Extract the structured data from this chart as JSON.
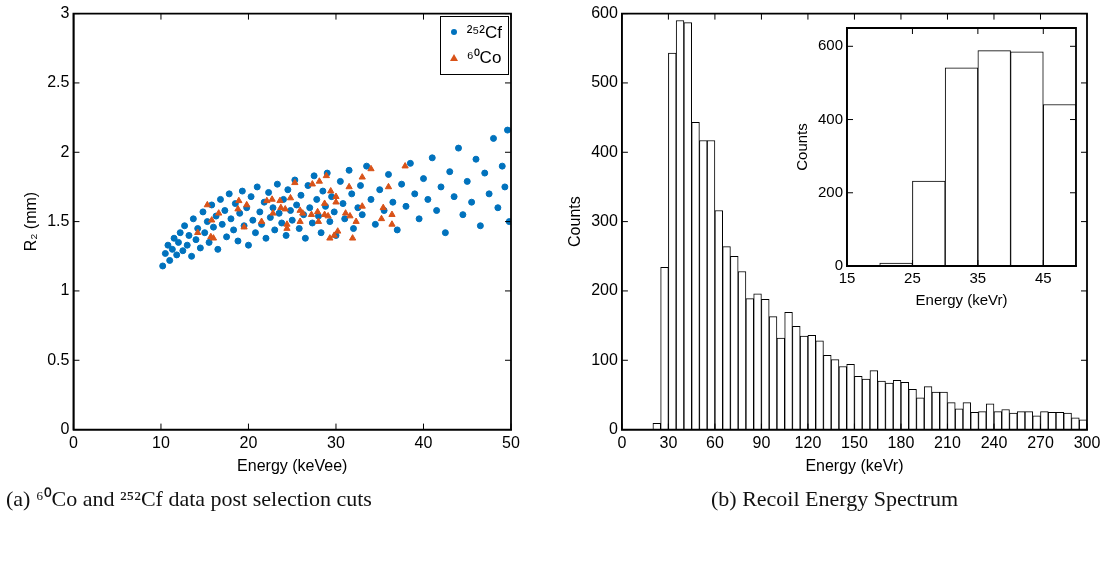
{
  "chart_data": [
    {
      "type": "scatter",
      "xlabel": "Energy (keVee)",
      "ylabel": "R₂ (mm)",
      "xlim": [
        0,
        50
      ],
      "ylim": [
        0,
        3
      ],
      "xticks": [
        0,
        10,
        20,
        30,
        40,
        50
      ],
      "yticks": [
        0,
        0.5,
        1,
        1.5,
        2,
        2.5,
        3
      ],
      "legend": "top right",
      "series": [
        {
          "name": "²⁵²Cf",
          "color": "#0072bd",
          "marker": "circle",
          "x": [
            10.2,
            10.5,
            10.8,
            11.0,
            11.3,
            11.5,
            11.8,
            12.0,
            12.2,
            12.5,
            12.7,
            13.0,
            13.2,
            13.5,
            13.7,
            14.0,
            14.2,
            14.5,
            14.8,
            15.0,
            15.3,
            15.5,
            15.8,
            16.0,
            16.3,
            16.5,
            16.8,
            17.0,
            17.3,
            17.5,
            17.8,
            18.0,
            18.3,
            18.5,
            18.8,
            19.0,
            19.3,
            19.5,
            19.8,
            20.0,
            20.3,
            20.5,
            20.8,
            21.0,
            21.3,
            21.5,
            21.8,
            22.0,
            22.3,
            22.5,
            22.8,
            23.0,
            23.3,
            23.5,
            23.8,
            24.0,
            24.3,
            24.5,
            24.8,
            25.0,
            25.3,
            25.5,
            25.8,
            26.0,
            26.3,
            26.5,
            26.8,
            27.0,
            27.3,
            27.5,
            27.8,
            28.0,
            28.3,
            28.5,
            28.8,
            29.0,
            29.3,
            29.5,
            29.8,
            30.0,
            30.5,
            30.8,
            31.0,
            31.5,
            31.8,
            32.0,
            32.5,
            32.8,
            33.0,
            33.5,
            34.0,
            34.5,
            35.0,
            35.5,
            36.0,
            36.5,
            37.0,
            37.5,
            38.0,
            38.5,
            39.0,
            39.5,
            40.0,
            40.5,
            41.0,
            41.5,
            42.0,
            42.5,
            43.0,
            43.5,
            44.0,
            44.5,
            45.0,
            45.5,
            46.0,
            46.5,
            47.0,
            47.5,
            48.0,
            48.5,
            49.0,
            49.3,
            49.6,
            49.8
          ],
          "values": [
            1.18,
            1.27,
            1.33,
            1.22,
            1.3,
            1.38,
            1.26,
            1.35,
            1.42,
            1.29,
            1.47,
            1.33,
            1.4,
            1.25,
            1.52,
            1.37,
            1.45,
            1.31,
            1.57,
            1.42,
            1.5,
            1.35,
            1.62,
            1.46,
            1.54,
            1.3,
            1.66,
            1.48,
            1.58,
            1.39,
            1.7,
            1.52,
            1.44,
            1.63,
            1.36,
            1.56,
            1.72,
            1.47,
            1.6,
            1.33,
            1.68,
            1.51,
            1.42,
            1.75,
            1.57,
            1.48,
            1.64,
            1.38,
            1.71,
            1.53,
            1.6,
            1.44,
            1.77,
            1.56,
            1.49,
            1.66,
            1.4,
            1.73,
            1.58,
            1.51,
            1.8,
            1.62,
            1.45,
            1.69,
            1.55,
            1.38,
            1.76,
            1.6,
            1.49,
            1.83,
            1.66,
            1.54,
            1.42,
            1.72,
            1.61,
            1.85,
            1.5,
            1.68,
            1.57,
            1.4,
            1.79,
            1.63,
            1.52,
            1.87,
            1.7,
            1.45,
            1.6,
            1.76,
            1.55,
            1.9,
            1.66,
            1.48,
            1.73,
            1.58,
            1.84,
            1.64,
            1.44,
            1.77,
            1.61,
            1.92,
            1.7,
            1.52,
            1.81,
            1.66,
            1.96,
            1.58,
            1.75,
            1.42,
            1.86,
            1.68,
            2.03,
            1.55,
            1.79,
            1.64,
            1.95,
            1.47,
            1.85,
            1.7,
            2.1,
            1.6,
            1.9,
            1.75,
            2.16,
            1.5
          ]
        },
        {
          "name": "⁶⁰Co",
          "color": "#d95319",
          "marker": "triangle",
          "x": [
            15.3,
            14.2,
            15.8,
            15.7,
            16.0,
            16.6,
            18.9,
            18.8,
            19.8,
            19.5,
            21.5,
            22.1,
            22.7,
            22.8,
            23.6,
            23.7,
            24.2,
            24.4,
            24.4,
            24.8,
            25.3,
            25.9,
            25.9,
            26.2,
            27.2,
            27.3,
            27.9,
            28.0,
            28.1,
            28.7,
            28.7,
            28.9,
            29.1,
            29.3,
            29.4,
            29.8,
            30.0,
            30.0,
            30.2,
            31.1,
            31.5,
            31.6,
            31.9,
            32.3,
            33.0,
            33.0,
            34.0,
            35.2,
            35.4,
            36.0,
            36.4,
            36.4,
            37.9
          ],
          "values": [
            1.62,
            1.42,
            1.51,
            1.39,
            1.38,
            1.56,
            1.65,
            1.59,
            1.62,
            1.46,
            1.5,
            1.65,
            1.66,
            1.56,
            1.65,
            1.6,
            1.59,
            1.48,
            1.45,
            1.67,
            1.78,
            1.58,
            1.5,
            1.56,
            1.55,
            1.77,
            1.57,
            1.5,
            1.79,
            1.55,
            1.63,
            1.83,
            1.54,
            1.38,
            1.72,
            1.4,
            1.68,
            1.64,
            1.43,
            1.56,
            1.75,
            1.54,
            1.38,
            1.5,
            1.82,
            1.61,
            1.88,
            1.52,
            1.6,
            1.75,
            1.55,
            1.48,
            1.9
          ]
        }
      ],
      "annotations": [
        "(a) ⁶⁰Co and ²⁵²Cf data post selection cuts"
      ]
    },
    {
      "type": "histogram",
      "xlabel": "Energy (keVr)",
      "ylabel": "Counts",
      "color": "#ffffff",
      "xlim": [
        0,
        300
      ],
      "ylim": [
        0,
        600
      ],
      "xticks": [
        0,
        30,
        60,
        90,
        120,
        150,
        180,
        210,
        240,
        270,
        300
      ],
      "yticks": [
        0,
        100,
        200,
        300,
        400,
        500,
        600
      ],
      "bins": [
        20,
        25,
        30,
        35,
        40,
        45,
        50,
        55,
        60,
        65,
        70,
        75,
        80,
        85,
        90,
        95,
        100,
        105,
        110,
        115,
        120,
        125,
        130,
        135,
        140,
        145,
        150,
        155,
        160,
        165,
        170,
        175,
        180,
        185,
        190,
        195,
        200,
        205,
        210,
        215,
        220,
        225,
        230,
        235,
        240,
        245,
        250,
        255,
        260,
        265,
        270,
        275,
        280,
        285,
        290,
        295,
        300
      ],
      "values": [
        9,
        234,
        543,
        590,
        587,
        443,
        417,
        417,
        316,
        264,
        250,
        228,
        189,
        196,
        188,
        163,
        132,
        169,
        149,
        135,
        136,
        128,
        107,
        101,
        91,
        94,
        77,
        73,
        85,
        70,
        67,
        71,
        68,
        58,
        46,
        62,
        54,
        54,
        39,
        30,
        39,
        25,
        26,
        37,
        26,
        29,
        24,
        26,
        26,
        20,
        26,
        25,
        25,
        24,
        17,
        14
      ],
      "annotations": [
        "(b) Recoil Energy Spectrum"
      ]
    },
    {
      "type": "histogram",
      "xlabel": "Energy (keVr)",
      "ylabel": "Counts",
      "color": "#ffffff",
      "xlim": [
        15,
        50
      ],
      "ylim": [
        0,
        650
      ],
      "xticks": [
        15,
        25,
        35,
        45
      ],
      "yticks": [
        0,
        200,
        400,
        600
      ],
      "bins": [
        20,
        25,
        30,
        35,
        40,
        45,
        50
      ],
      "values": [
        8,
        232,
        541,
        588,
        585,
        441
      ]
    }
  ]
}
